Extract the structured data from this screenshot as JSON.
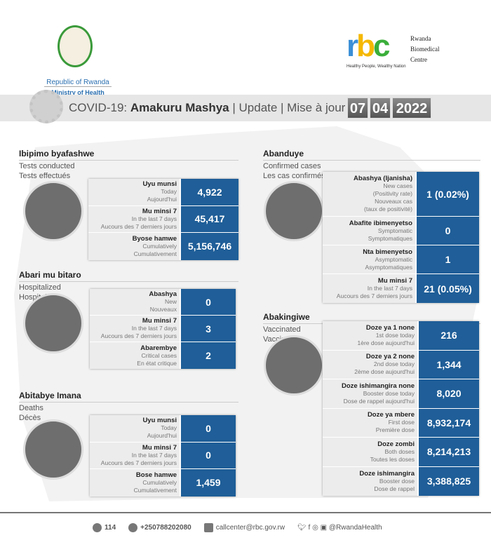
{
  "header": {
    "left_logo_line1": "Republic of Rwanda",
    "left_logo_line2": "Ministry of Health",
    "rbc_logo": "rbc",
    "rbc_name": [
      "Rwanda",
      "Biomedical",
      "Centre"
    ],
    "rbc_slogan": "Healthy People, Wealthy Nation"
  },
  "banner": {
    "prefix": "COVID-19: ",
    "bold": "Amakuru Mashya",
    "rest": " | Update | Mise à jour",
    "day": "07",
    "month": "04",
    "year": "2022"
  },
  "colors": {
    "value_bg": "#1f5e98",
    "label_bg": "#ececec",
    "band": "#e6e6e6"
  },
  "sections": {
    "tests": {
      "title": "Ibipimo byafashwe",
      "sub": [
        "Tests conducted",
        "Tests effectués"
      ],
      "icon": "test-tube-icon",
      "rows": [
        {
          "k": "Uyu munsi",
          "en": "Today",
          "fr": "Aujourd'hui",
          "v": "4,922"
        },
        {
          "k": "Mu minsi 7",
          "en": "In the last 7 days",
          "fr": "Aucours des 7 derniers jours",
          "v": "45,417"
        },
        {
          "k": "Byose hamwe",
          "en": "Cumulatively",
          "fr": "Cumulativement",
          "v": "5,156,746"
        }
      ]
    },
    "hospitalized": {
      "title": "Abari mu bitaro",
      "sub": [
        "Hospitalized",
        "Hospitalisés"
      ],
      "icon": "hospital-bed-icon",
      "rows": [
        {
          "k": "Abashya",
          "en": "New",
          "fr": "Nouveaux",
          "v": "0"
        },
        {
          "k": "Mu minsi 7",
          "en": "In the last 7 days",
          "fr": "Aucours des 7 derniers jours",
          "v": "3"
        },
        {
          "k": "Abarembye",
          "en": "Critical cases",
          "fr": "En état critique",
          "v": "2"
        }
      ]
    },
    "deaths": {
      "title": "Abitabye Imana",
      "sub": [
        "Deaths",
        "Décès"
      ],
      "icon": "gravestone-icon",
      "rows": [
        {
          "k": "Uyu munsi",
          "en": "Today",
          "fr": "Aujourd'hui",
          "v": "0"
        },
        {
          "k": "Mu minsi 7",
          "en": "In the last 7 days",
          "fr": "Aucours des 7 derniers jours",
          "v": "0"
        },
        {
          "k": "Bose hamwe",
          "en": "Cumulatively",
          "fr": "Cumulativement",
          "v": "1,459"
        }
      ]
    },
    "confirmed": {
      "title": "Abanduye",
      "sub": [
        "Confirmed cases",
        "Les cas confirmés"
      ],
      "icon": "person-virus-icon",
      "rows": [
        {
          "k": "Abashya (Ijanisha)",
          "en": "New cases\n(Positivity rate)",
          "fr": "Nouveaux cas\n(taux de positivité)",
          "v": "1 (0.02%)"
        },
        {
          "k": "Abafite ibimenyetso",
          "en": "Symptomatic",
          "fr": "Symptomatiques",
          "v": "0"
        },
        {
          "k": "Nta bimenyetso",
          "en": "Asymptomatic",
          "fr": "Asymptomatiques",
          "v": "1"
        },
        {
          "k": "Mu minsi 7",
          "en": "In the last 7 days",
          "fr": "Aucours des 7 derniers jours",
          "v": "21 (0.05%)"
        }
      ]
    },
    "vaccinated": {
      "title": "Abakingiwe",
      "sub": [
        "Vaccinated",
        "Vaccinés"
      ],
      "icon": "syringe-icon",
      "rows": [
        {
          "k": "Doze ya 1 none",
          "en": "1st dose today",
          "fr": "1ère dose  aujourd'hui",
          "v": "216"
        },
        {
          "k": "Doze ya 2 none",
          "en": "2nd dose today",
          "fr": "2ème dose aujourd'hui",
          "v": "1,344"
        },
        {
          "k": "Doze ishimangira none",
          "en": "Booster dose today",
          "fr": "Dose de rappel aujourd'hui",
          "v": "8,020"
        },
        {
          "k": "Doze ya mbere",
          "en": "First dose",
          "fr": "Première dose",
          "v": "8,932,174"
        },
        {
          "k": "Doze zombi",
          "en": "Both doses",
          "fr": "Toutes les doses",
          "v": "8,214,213"
        },
        {
          "k": "Doze ishimangira",
          "en": "Booster dose",
          "fr": "Dose de rappel",
          "v": "3,388,825"
        }
      ]
    }
  },
  "footer": {
    "hotline": "114",
    "phone": "+250788202080",
    "email": "callcenter@rbc.gov.rw",
    "social": "@RwandaHealth"
  }
}
